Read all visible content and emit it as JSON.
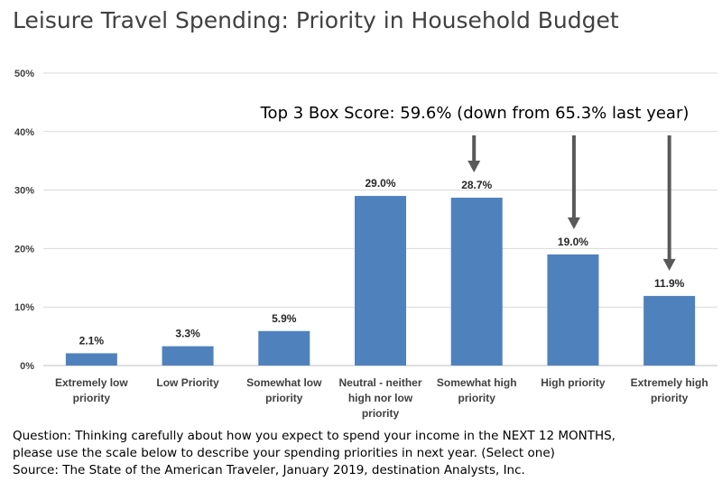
{
  "chart_data": {
    "type": "bar",
    "title": "Leisure Travel Spending: Priority in Household Budget",
    "categories": [
      [
        "Extremely low",
        "priority"
      ],
      [
        "Low Priority"
      ],
      [
        "Somewhat low",
        "priority"
      ],
      [
        "Neutral - neither",
        "high nor low",
        "priority"
      ],
      [
        "Somewhat high",
        "priority"
      ],
      [
        "High priority"
      ],
      [
        "Extremely high",
        "priority"
      ]
    ],
    "values": [
      2.1,
      3.3,
      5.9,
      29.0,
      28.7,
      19.0,
      11.9
    ],
    "data_labels": [
      "2.1%",
      "3.3%",
      "5.9%",
      "29.0%",
      "28.7%",
      "19.0%",
      "11.9%"
    ],
    "ylim": [
      0,
      50
    ],
    "yticks": [
      0,
      10,
      20,
      30,
      40,
      50
    ],
    "ytick_labels": [
      "0%",
      "10%",
      "20%",
      "30%",
      "40%",
      "50%"
    ],
    "grid": true,
    "bar_color": "#4f81bd",
    "annotation": {
      "text": "Top 3 Box Score: 59.6% (down from 65.3% last year)",
      "arrow_targets": [
        4,
        5,
        6
      ],
      "arrow_color": "#595959"
    }
  },
  "footer": {
    "question_line1": "Question:  Thinking carefully about how you expect to spend your income in the NEXT 12 MONTHS,",
    "question_line2": "please use the scale below to describe your spending priorities in next year. (Select one)",
    "source": "Source: The State of the American Traveler, January 2019, destination Analysts, Inc."
  }
}
